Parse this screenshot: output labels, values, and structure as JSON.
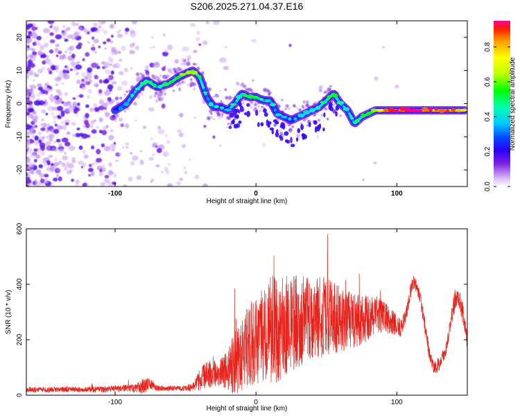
{
  "title": "S206.2025.271.04.37.E16",
  "chart_data": [
    {
      "type": "heatmap",
      "name": "spectrogram",
      "xlabel": "Height of straight line (km)",
      "ylabel": "Frequency (Hz)",
      "xlim": [
        -163,
        150
      ],
      "ylim": [
        -25,
        25
      ],
      "xticks": [
        -100,
        0,
        100
      ],
      "xtick_labels": [
        "-100",
        "0",
        "100"
      ],
      "yticks": [
        -20,
        -10,
        0,
        10,
        20
      ],
      "ytick_labels": [
        "-20",
        "-10",
        "0",
        "10",
        "20"
      ],
      "ridge": {
        "x": [
          -100,
          -92,
          -85,
          -78,
          -70,
          -62,
          -55,
          -45,
          -40,
          -35,
          -30,
          -25,
          -20,
          -15,
          -10,
          -5,
          0,
          5,
          10,
          15,
          20,
          25,
          30,
          35,
          40,
          45,
          50,
          55,
          60,
          65,
          70,
          75,
          80,
          85,
          90,
          95,
          100,
          110,
          120,
          130,
          140,
          148
        ],
        "y": [
          -2,
          0,
          4,
          7,
          5,
          6,
          8,
          10,
          8,
          2,
          -1,
          -1,
          -2,
          0,
          3,
          2,
          2,
          1,
          1,
          -3,
          -4,
          -5,
          -4,
          -3,
          -2,
          -1,
          1,
          3,
          0,
          -2,
          -6,
          -4,
          -3,
          -2,
          -2,
          -2,
          -2,
          -2,
          -2,
          -2,
          -2,
          -2
        ],
        "amplitude": [
          0.25,
          0.3,
          0.4,
          0.45,
          0.4,
          0.45,
          0.5,
          0.55,
          0.5,
          0.35,
          0.35,
          0.3,
          0.3,
          0.4,
          0.4,
          0.45,
          0.45,
          0.4,
          0.35,
          0.35,
          0.3,
          0.3,
          0.3,
          0.35,
          0.35,
          0.4,
          0.45,
          0.5,
          0.4,
          0.35,
          0.4,
          0.45,
          0.5,
          0.6,
          0.75,
          0.85,
          0.9,
          0.9,
          0.85,
          0.85,
          0.8,
          0.75
        ]
      },
      "colorbar": {
        "label": "Normalized spectral amplitude",
        "min": 0.0,
        "max": 0.95,
        "ticks": [
          0.0,
          0.2,
          0.4,
          0.6,
          0.8
        ],
        "tick_labels": [
          "0.0",
          "0.2",
          "0.4",
          "0.6",
          "0.8"
        ]
      }
    },
    {
      "type": "line",
      "name": "snr",
      "xlabel": "Height of straight line (km)",
      "ylabel": "SNR (10 * v/v)",
      "xlim": [
        -163,
        150
      ],
      "ylim": [
        0,
        600
      ],
      "xticks": [
        -100,
        0,
        100
      ],
      "xtick_labels": [
        "-100",
        "0",
        "100"
      ],
      "yticks": [
        0,
        200,
        400,
        600
      ],
      "ytick_labels": [
        "0",
        "200",
        "400",
        "600"
      ],
      "color": "#e8231c",
      "envelope": {
        "x": [
          -163,
          -120,
          -85,
          -80,
          -75,
          -70,
          -60,
          -50,
          -45,
          -40,
          -35,
          -30,
          -25,
          -20,
          -15,
          -10,
          -5,
          0,
          5,
          10,
          15,
          20,
          25,
          30,
          35,
          40,
          45,
          50,
          55,
          60,
          65,
          70,
          75,
          80,
          85,
          90,
          95,
          100,
          103,
          107,
          110,
          113,
          116,
          120,
          123,
          126,
          130,
          135,
          138,
          141,
          144,
          147,
          150
        ],
        "base": [
          20,
          20,
          25,
          35,
          40,
          25,
          25,
          25,
          30,
          55,
          75,
          80,
          80,
          100,
          120,
          150,
          180,
          190,
          210,
          230,
          240,
          250,
          260,
          260,
          270,
          275,
          280,
          285,
          280,
          270,
          270,
          270,
          270,
          280,
          290,
          285,
          270,
          250,
          240,
          300,
          380,
          410,
          370,
          250,
          150,
          100,
          110,
          170,
          260,
          340,
          360,
          290,
          190
        ],
        "amp": [
          10,
          10,
          15,
          30,
          20,
          10,
          10,
          10,
          15,
          40,
          50,
          50,
          50,
          80,
          120,
          140,
          150,
          160,
          170,
          200,
          200,
          190,
          180,
          170,
          160,
          150,
          150,
          140,
          130,
          120,
          110,
          100,
          90,
          80,
          70,
          60,
          50,
          40,
          30,
          30,
          30,
          30,
          30,
          30,
          25,
          25,
          25,
          30,
          30,
          40,
          40,
          40,
          30
        ]
      }
    }
  ]
}
